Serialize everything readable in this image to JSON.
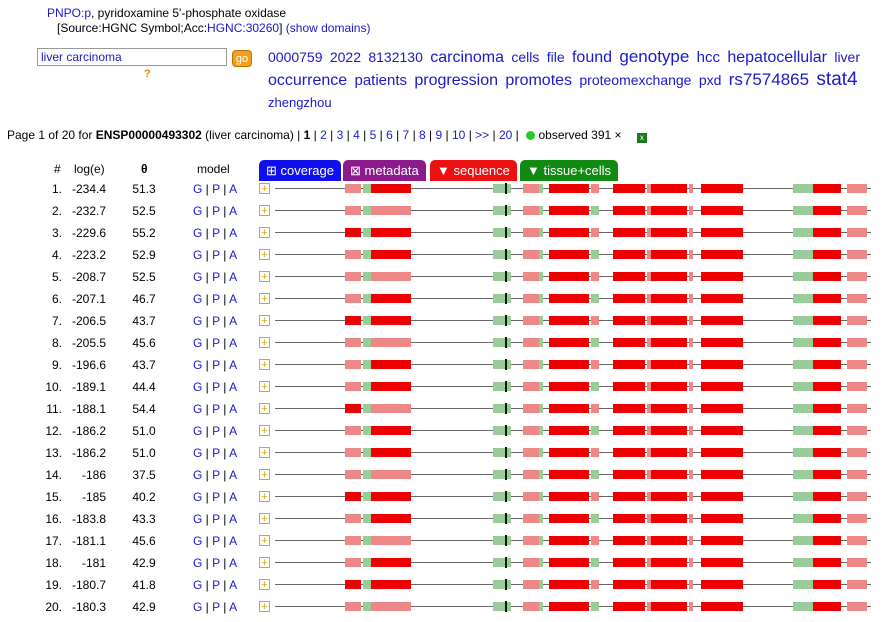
{
  "header": {
    "gene_link": "PNPO:p",
    "gene_desc": ", pyridoxamine 5'-phosphate oxidase",
    "source_prefix": "[Source:HGNC Symbol;Acc:",
    "source_acc": "HGNC:30260",
    "source_suffix": "]",
    "show_domains": "(show domains)"
  },
  "search": {
    "value": "liver carcinoma",
    "go_label": "go",
    "help": "?"
  },
  "word_cloud": [
    {
      "w": "0000759",
      "s": 14
    },
    {
      "w": "2022",
      "s": 14
    },
    {
      "w": "8132130",
      "s": 14
    },
    {
      "w": "carcinoma",
      "s": 16
    },
    {
      "w": "cells",
      "s": 14
    },
    {
      "w": "file",
      "s": 14
    },
    {
      "w": "found",
      "s": 16
    },
    {
      "w": "genotype",
      "s": 17
    },
    {
      "w": "hcc",
      "s": 15
    },
    {
      "w": "hepatocellular",
      "s": 16
    },
    {
      "w": "liver",
      "s": 14
    },
    {
      "w": "occurrence",
      "s": 16
    },
    {
      "w": "patients",
      "s": 15
    },
    {
      "w": "progression",
      "s": 16
    },
    {
      "w": "promotes",
      "s": 16
    },
    {
      "w": "proteomexchange",
      "s": 14
    },
    {
      "w": "pxd",
      "s": 14
    },
    {
      "w": "rs7574865",
      "s": 17
    },
    {
      "w": "stat4",
      "s": 19
    },
    {
      "w": "zhengzhou",
      "s": 13
    }
  ],
  "pager": {
    "prefix": "Page 1 of 20 for ",
    "protein": "ENSP00000493302",
    "query": " (liver carcinoma) |",
    "current": "1",
    "pages": [
      "2",
      "3",
      "4",
      "5",
      "6",
      "7",
      "8",
      "9",
      "10",
      ">>",
      "20"
    ],
    "observed": "observed 391 ×",
    "excel_icon": "excel-icon"
  },
  "columns": {
    "num": "#",
    "loge": "log(e)",
    "theta": "θ",
    "model": "model"
  },
  "tabs": [
    {
      "label": "⊞ coverage",
      "color": "#1010ee"
    },
    {
      "label": "⊠ metadata",
      "color": "#8b1a8b"
    },
    {
      "label": "▼ sequence",
      "color": "#ee1010"
    },
    {
      "label": "▼ tissue+cells",
      "color": "#108a10"
    }
  ],
  "colors": {
    "red": "#ee0000",
    "pink": "#ee8888",
    "green": "#99cc99",
    "line": "#666666"
  },
  "model_links": {
    "g": "G",
    "p": "P",
    "a": "A",
    "sep": " | "
  },
  "rows": [
    {
      "n": "1.",
      "loge": "-234.4",
      "theta": "51.3"
    },
    {
      "n": "2.",
      "loge": "-232.7",
      "theta": "52.5"
    },
    {
      "n": "3.",
      "loge": "-229.6",
      "theta": "55.2"
    },
    {
      "n": "4.",
      "loge": "-223.2",
      "theta": "52.9"
    },
    {
      "n": "5.",
      "loge": "-208.7",
      "theta": "52.5"
    },
    {
      "n": "6.",
      "loge": "-207.1",
      "theta": "46.7"
    },
    {
      "n": "7.",
      "loge": "-206.5",
      "theta": "43.7"
    },
    {
      "n": "8.",
      "loge": "-205.5",
      "theta": "45.6"
    },
    {
      "n": "9.",
      "loge": "-196.6",
      "theta": "43.7"
    },
    {
      "n": "10.",
      "loge": "-189.1",
      "theta": "44.4"
    },
    {
      "n": "11.",
      "loge": "-188.1",
      "theta": "54.4"
    },
    {
      "n": "12.",
      "loge": "-186.2",
      "theta": "51.0"
    },
    {
      "n": "13.",
      "loge": "-186.2",
      "theta": "51.0"
    },
    {
      "n": "14.",
      "loge": "-186",
      "theta": "37.5"
    },
    {
      "n": "15.",
      "loge": "-185",
      "theta": "40.2"
    },
    {
      "n": "16.",
      "loge": "-183.8",
      "theta": "43.3"
    },
    {
      "n": "17.",
      "loge": "-181.1",
      "theta": "45.6"
    },
    {
      "n": "18.",
      "loge": "-181",
      "theta": "42.9"
    },
    {
      "n": "19.",
      "loge": "-180.7",
      "theta": "41.8"
    },
    {
      "n": "20.",
      "loge": "-180.3",
      "theta": "42.9"
    }
  ]
}
